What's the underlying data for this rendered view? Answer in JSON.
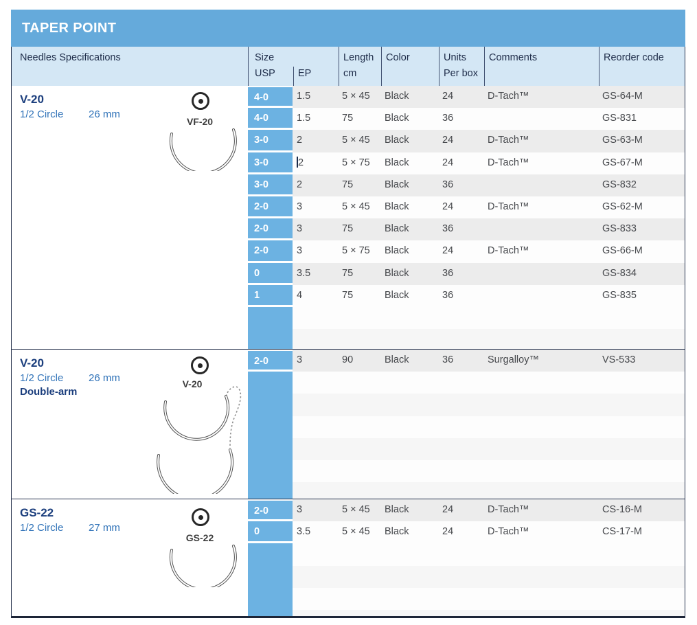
{
  "title": "TAPER POINT",
  "header": {
    "specs": "Needles Specifications",
    "size": "Size",
    "usp": "USP",
    "ep": "EP",
    "length": "Length",
    "length_unit": "cm",
    "color": "Color",
    "units": "Units",
    "units_sub": "Per box",
    "comments": "Comments",
    "reorder": "Reorder code"
  },
  "colors": {
    "title_bar_blue": "#65aadb",
    "header_light_blue": "#d4e7f5",
    "usp_band_blue": "#6cb2e2",
    "row_stripe_gray": "#ececec",
    "model_navy": "#1b3e7d",
    "subtitle_blue": "#2f72b8"
  },
  "sections": [
    {
      "model": "V-20",
      "circle": "1/2 Circle",
      "diameter": "26 mm",
      "arm": "",
      "needle_label": "VF-20",
      "diagram": "single",
      "rows": [
        {
          "usp": "4-0",
          "ep": "1.5",
          "length": "5 × 45",
          "color": "Black",
          "units": "24",
          "comments": "D-Tach™",
          "reorder": "GS-64-M"
        },
        {
          "usp": "4-0",
          "ep": "1.5",
          "length": "75",
          "color": "Black",
          "units": "36",
          "comments": "",
          "reorder": "GS-831"
        },
        {
          "usp": "3-0",
          "ep": "2",
          "length": "5 × 45",
          "color": "Black",
          "units": "24",
          "comments": "D-Tach™",
          "reorder": "GS-63-M"
        },
        {
          "usp": "3-0",
          "ep": "2",
          "length": "5 × 75",
          "color": "Black",
          "units": "24",
          "comments": "D-Tach™",
          "reorder": "GS-67-M",
          "caret": true
        },
        {
          "usp": "3-0",
          "ep": "2",
          "length": "75",
          "color": "Black",
          "units": "36",
          "comments": "",
          "reorder": "GS-832"
        },
        {
          "usp": "2-0",
          "ep": "3",
          "length": "5 × 45",
          "color": "Black",
          "units": "24",
          "comments": "D-Tach™",
          "reorder": "GS-62-M"
        },
        {
          "usp": "2-0",
          "ep": "3",
          "length": "75",
          "color": "Black",
          "units": "36",
          "comments": "",
          "reorder": "GS-833"
        },
        {
          "usp": "2-0",
          "ep": "3",
          "length": "5 × 75",
          "color": "Black",
          "units": "24",
          "comments": "D-Tach™",
          "reorder": "GS-66-M"
        },
        {
          "usp": "0",
          "ep": "3.5",
          "length": "75",
          "color": "Black",
          "units": "36",
          "comments": "",
          "reorder": "GS-834"
        },
        {
          "usp": "1",
          "ep": "4",
          "length": "75",
          "color": "Black",
          "units": "36",
          "comments": "",
          "reorder": "GS-835"
        }
      ]
    },
    {
      "model": "V-20",
      "circle": "1/2 Circle",
      "diameter": "26 mm",
      "arm": "Double-arm",
      "needle_label": "V-20",
      "diagram": "double",
      "rows": [
        {
          "usp": "2-0",
          "ep": "3",
          "length": "90",
          "color": "Black",
          "units": "36",
          "comments": "Surgalloy™",
          "reorder": "VS-533"
        }
      ]
    },
    {
      "model": "GS-22",
      "circle": "1/2 Circle",
      "diameter": "27 mm",
      "arm": "",
      "needle_label": "GS-22",
      "diagram": "single",
      "rows": [
        {
          "usp": "2-0",
          "ep": "3",
          "length": "5 × 45",
          "color": "Black",
          "units": "24",
          "comments": "D-Tach™",
          "reorder": "CS-16-M"
        },
        {
          "usp": "0",
          "ep": "3.5",
          "length": "5 × 45",
          "color": "Black",
          "units": "24",
          "comments": "D-Tach™",
          "reorder": "CS-17-M"
        }
      ]
    }
  ]
}
